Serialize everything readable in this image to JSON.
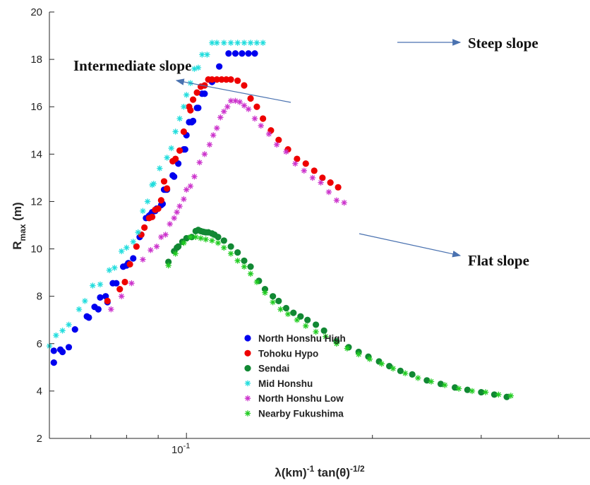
{
  "chart_data": {
    "type": "scatter",
    "xscale": "log",
    "xlim": [
      0.06,
      0.45
    ],
    "ylim": [
      2,
      20
    ],
    "xtick_labels": [
      {
        "value": 0.1,
        "base": "10",
        "exp": "-1"
      }
    ],
    "yticks": [
      2,
      4,
      6,
      8,
      10,
      12,
      14,
      16,
      18,
      20
    ],
    "xlabel": {
      "main": "λ(km)",
      "sup1": "-1",
      "mid": " tan(θ)",
      "sup2": "-1/2"
    },
    "ylabel": {
      "main": "R",
      "sub": "max",
      "unit": " (m)"
    },
    "legend_position": "lower-center",
    "annotations": [
      {
        "text": "Steep slope"
      },
      {
        "text": "Intermediate slope"
      },
      {
        "text": "Flat slope"
      }
    ],
    "series": [
      {
        "name": "North Honshu High",
        "marker": "dot",
        "color": "#0000ee",
        "points": [
          [
            0.061,
            5.2
          ],
          [
            0.061,
            5.7
          ],
          [
            0.0625,
            5.75
          ],
          [
            0.063,
            5.65
          ],
          [
            0.0645,
            5.85
          ],
          [
            0.066,
            6.6
          ],
          [
            0.069,
            7.15
          ],
          [
            0.0695,
            7.1
          ],
          [
            0.071,
            7.55
          ],
          [
            0.072,
            7.45
          ],
          [
            0.0725,
            7.95
          ],
          [
            0.074,
            8.0
          ],
          [
            0.0745,
            7.75
          ],
          [
            0.076,
            8.55
          ],
          [
            0.077,
            8.55
          ],
          [
            0.079,
            9.25
          ],
          [
            0.08,
            9.3
          ],
          [
            0.0805,
            9.4
          ],
          [
            0.082,
            9.6
          ],
          [
            0.084,
            10.5
          ],
          [
            0.0845,
            10.6
          ],
          [
            0.086,
            11.3
          ],
          [
            0.087,
            11.4
          ],
          [
            0.0875,
            11.45
          ],
          [
            0.088,
            11.55
          ],
          [
            0.089,
            11.6
          ],
          [
            0.0895,
            11.7
          ],
          [
            0.091,
            11.85
          ],
          [
            0.0915,
            11.9
          ],
          [
            0.092,
            12.5
          ],
          [
            0.0925,
            12.5
          ],
          [
            0.093,
            12.5
          ],
          [
            0.095,
            13.1
          ],
          [
            0.0955,
            13.05
          ],
          [
            0.097,
            13.6
          ],
          [
            0.099,
            14.2
          ],
          [
            0.0995,
            14.2
          ],
          [
            0.1,
            14.8
          ],
          [
            0.101,
            15.35
          ],
          [
            0.102,
            15.35
          ],
          [
            0.1025,
            15.4
          ],
          [
            0.104,
            15.95
          ],
          [
            0.1045,
            15.95
          ],
          [
            0.106,
            16.55
          ],
          [
            0.107,
            16.55
          ],
          [
            0.11,
            17.05
          ],
          [
            0.113,
            17.7
          ],
          [
            0.117,
            18.25
          ],
          [
            0.12,
            18.25
          ],
          [
            0.123,
            18.25
          ],
          [
            0.126,
            18.25
          ],
          [
            0.129,
            18.25
          ]
        ]
      },
      {
        "name": "Tohoku Hypo",
        "marker": "dot",
        "color": "#ee0000",
        "points": [
          [
            0.0745,
            7.8
          ],
          [
            0.078,
            8.3
          ],
          [
            0.0795,
            8.6
          ],
          [
            0.081,
            9.35
          ],
          [
            0.083,
            10.1
          ],
          [
            0.0845,
            10.6
          ],
          [
            0.0855,
            10.9
          ],
          [
            0.087,
            11.3
          ],
          [
            0.088,
            11.35
          ],
          [
            0.089,
            11.65
          ],
          [
            0.09,
            11.7
          ],
          [
            0.091,
            12.05
          ],
          [
            0.092,
            12.85
          ],
          [
            0.093,
            12.55
          ],
          [
            0.095,
            13.7
          ],
          [
            0.096,
            13.8
          ],
          [
            0.0975,
            14.15
          ],
          [
            0.099,
            14.95
          ],
          [
            0.101,
            16.0
          ],
          [
            0.1015,
            15.85
          ],
          [
            0.1025,
            16.3
          ],
          [
            0.104,
            16.6
          ],
          [
            0.1055,
            16.85
          ],
          [
            0.107,
            16.9
          ],
          [
            0.1085,
            17.15
          ],
          [
            0.11,
            17.15
          ],
          [
            0.112,
            17.15
          ],
          [
            0.114,
            17.15
          ],
          [
            0.116,
            17.15
          ],
          [
            0.118,
            17.15
          ],
          [
            0.121,
            17.1
          ],
          [
            0.124,
            16.9
          ],
          [
            0.127,
            16.35
          ],
          [
            0.13,
            16.0
          ],
          [
            0.133,
            15.5
          ],
          [
            0.137,
            15.0
          ],
          [
            0.141,
            14.6
          ],
          [
            0.146,
            14.2
          ],
          [
            0.151,
            13.8
          ],
          [
            0.156,
            13.6
          ],
          [
            0.161,
            13.3
          ],
          [
            0.166,
            13.0
          ],
          [
            0.171,
            12.8
          ],
          [
            0.176,
            12.6
          ]
        ]
      },
      {
        "name": "Sendai",
        "marker": "dot",
        "color": "#118833",
        "points": [
          [
            0.0935,
            9.45
          ],
          [
            0.0955,
            9.9
          ],
          [
            0.0965,
            10.05
          ],
          [
            0.097,
            10.1
          ],
          [
            0.0985,
            10.3
          ],
          [
            0.1,
            10.45
          ],
          [
            0.102,
            10.5
          ],
          [
            0.1035,
            10.75
          ],
          [
            0.1045,
            10.8
          ],
          [
            0.1055,
            10.75
          ],
          [
            0.1065,
            10.72
          ],
          [
            0.1075,
            10.7
          ],
          [
            0.1085,
            10.7
          ],
          [
            0.11,
            10.65
          ],
          [
            0.111,
            10.6
          ],
          [
            0.1125,
            10.5
          ],
          [
            0.115,
            10.35
          ],
          [
            0.118,
            10.1
          ],
          [
            0.121,
            9.85
          ],
          [
            0.124,
            9.5
          ],
          [
            0.127,
            9.25
          ],
          [
            0.131,
            8.65
          ],
          [
            0.134,
            8.3
          ],
          [
            0.138,
            8.0
          ],
          [
            0.141,
            7.8
          ],
          [
            0.145,
            7.5
          ],
          [
            0.149,
            7.3
          ],
          [
            0.153,
            7.15
          ],
          [
            0.157,
            7.0
          ],
          [
            0.162,
            6.8
          ],
          [
            0.167,
            6.55
          ],
          [
            0.175,
            6.1
          ],
          [
            0.183,
            5.85
          ],
          [
            0.19,
            5.65
          ],
          [
            0.197,
            5.45
          ],
          [
            0.205,
            5.25
          ],
          [
            0.213,
            5.05
          ],
          [
            0.222,
            4.85
          ],
          [
            0.232,
            4.7
          ],
          [
            0.245,
            4.45
          ],
          [
            0.258,
            4.3
          ],
          [
            0.272,
            4.15
          ],
          [
            0.285,
            4.05
          ],
          [
            0.3,
            3.95
          ],
          [
            0.315,
            3.85
          ],
          [
            0.33,
            3.75
          ]
        ]
      },
      {
        "name": "Mid Honshu",
        "marker": "star",
        "color": "#22dddd",
        "points": [
          [
            0.06,
            5.9
          ],
          [
            0.0615,
            6.35
          ],
          [
            0.063,
            6.55
          ],
          [
            0.0645,
            6.8
          ],
          [
            0.067,
            7.45
          ],
          [
            0.0685,
            7.8
          ],
          [
            0.0705,
            8.45
          ],
          [
            0.0725,
            8.5
          ],
          [
            0.075,
            9.1
          ],
          [
            0.0765,
            9.2
          ],
          [
            0.0785,
            9.9
          ],
          [
            0.08,
            10.05
          ],
          [
            0.082,
            10.3
          ],
          [
            0.0835,
            10.7
          ],
          [
            0.085,
            11.6
          ],
          [
            0.0865,
            12.0
          ],
          [
            0.088,
            12.7
          ],
          [
            0.0885,
            12.75
          ],
          [
            0.0905,
            13.4
          ],
          [
            0.093,
            13.85
          ],
          [
            0.0945,
            14.25
          ],
          [
            0.096,
            14.95
          ],
          [
            0.0975,
            15.5
          ],
          [
            0.099,
            16.0
          ],
          [
            0.1,
            16.5
          ],
          [
            0.1015,
            17.0
          ],
          [
            0.103,
            17.6
          ],
          [
            0.1045,
            17.65
          ],
          [
            0.106,
            18.2
          ],
          [
            0.108,
            18.2
          ],
          [
            0.11,
            18.7
          ],
          [
            0.112,
            18.7
          ],
          [
            0.115,
            18.7
          ],
          [
            0.118,
            18.7
          ],
          [
            0.121,
            18.7
          ],
          [
            0.124,
            18.7
          ],
          [
            0.127,
            18.7
          ],
          [
            0.13,
            18.7
          ],
          [
            0.133,
            18.7
          ]
        ]
      },
      {
        "name": "North Honshu Low",
        "marker": "star",
        "color": "#cc33cc",
        "points": [
          [
            0.0755,
            7.45
          ],
          [
            0.0785,
            8.0
          ],
          [
            0.0815,
            8.55
          ],
          [
            0.085,
            9.55
          ],
          [
            0.0875,
            9.95
          ],
          [
            0.0895,
            10.1
          ],
          [
            0.091,
            10.5
          ],
          [
            0.0925,
            10.6
          ],
          [
            0.094,
            11.05
          ],
          [
            0.0955,
            11.3
          ],
          [
            0.0965,
            11.55
          ],
          [
            0.0975,
            11.8
          ],
          [
            0.099,
            12.1
          ],
          [
            0.1,
            12.5
          ],
          [
            0.1015,
            12.65
          ],
          [
            0.103,
            13.05
          ],
          [
            0.105,
            13.65
          ],
          [
            0.107,
            14.0
          ],
          [
            0.109,
            14.4
          ],
          [
            0.1105,
            14.8
          ],
          [
            0.112,
            15.1
          ],
          [
            0.1135,
            15.55
          ],
          [
            0.115,
            15.8
          ],
          [
            0.1165,
            16.0
          ],
          [
            0.118,
            16.25
          ],
          [
            0.12,
            16.25
          ],
          [
            0.122,
            16.2
          ],
          [
            0.124,
            16.05
          ],
          [
            0.126,
            15.9
          ],
          [
            0.129,
            15.5
          ],
          [
            0.132,
            15.2
          ],
          [
            0.136,
            14.85
          ],
          [
            0.14,
            14.4
          ],
          [
            0.145,
            14.1
          ],
          [
            0.15,
            13.6
          ],
          [
            0.155,
            13.3
          ],
          [
            0.16,
            13.0
          ],
          [
            0.165,
            12.8
          ],
          [
            0.17,
            12.4
          ],
          [
            0.175,
            12.05
          ],
          [
            0.18,
            11.95
          ]
        ]
      },
      {
        "name": "Nearby Fukushima",
        "marker": "star",
        "color": "#22cc22",
        "points": [
          [
            0.0935,
            9.3
          ],
          [
            0.096,
            9.8
          ],
          [
            0.099,
            10.25
          ],
          [
            0.1015,
            10.5
          ],
          [
            0.1035,
            10.5
          ],
          [
            0.1055,
            10.45
          ],
          [
            0.1075,
            10.4
          ],
          [
            0.11,
            10.35
          ],
          [
            0.1125,
            10.25
          ],
          [
            0.115,
            10.05
          ],
          [
            0.118,
            9.8
          ],
          [
            0.121,
            9.5
          ],
          [
            0.124,
            9.25
          ],
          [
            0.127,
            8.95
          ],
          [
            0.13,
            8.6
          ],
          [
            0.134,
            8.15
          ],
          [
            0.138,
            7.75
          ],
          [
            0.142,
            7.45
          ],
          [
            0.146,
            7.25
          ],
          [
            0.151,
            7.0
          ],
          [
            0.156,
            6.75
          ],
          [
            0.162,
            6.5
          ],
          [
            0.168,
            6.3
          ],
          [
            0.175,
            6.0
          ],
          [
            0.182,
            5.8
          ],
          [
            0.19,
            5.55
          ],
          [
            0.198,
            5.35
          ],
          [
            0.207,
            5.15
          ],
          [
            0.216,
            4.95
          ],
          [
            0.226,
            4.75
          ],
          [
            0.237,
            4.55
          ],
          [
            0.249,
            4.4
          ],
          [
            0.262,
            4.25
          ],
          [
            0.276,
            4.1
          ],
          [
            0.29,
            4.0
          ],
          [
            0.305,
            3.95
          ],
          [
            0.32,
            3.85
          ],
          [
            0.335,
            3.8
          ]
        ]
      }
    ]
  }
}
